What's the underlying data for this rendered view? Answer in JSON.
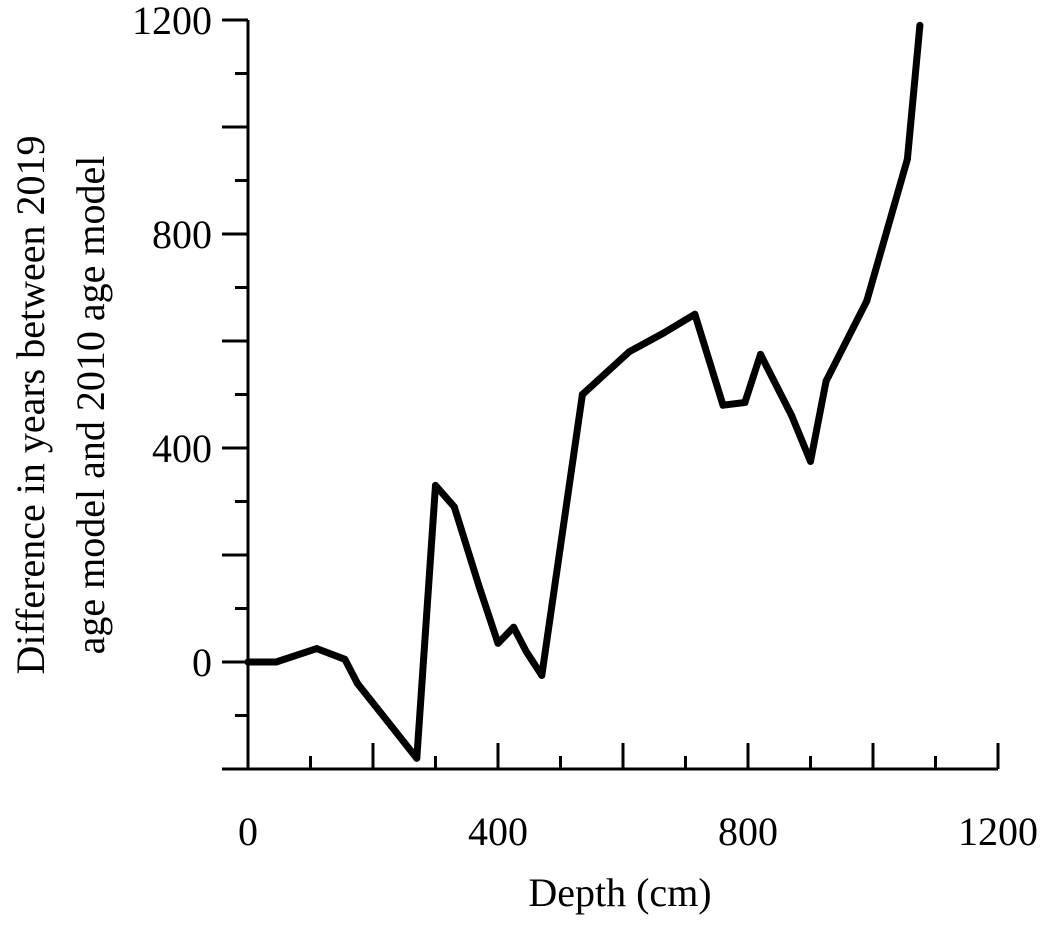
{
  "chart_data": {
    "type": "line",
    "title": "",
    "xlabel": "Depth (cm)",
    "ylabel_lines": [
      "Difference in years between 2019",
      "age model and 2010 age model"
    ],
    "xlim": [
      0,
      1200
    ],
    "ylim": [
      -200,
      1200
    ],
    "x_ticks": [
      0,
      400,
      800,
      1200
    ],
    "y_ticks": [
      0,
      400,
      800,
      1200
    ],
    "x_minor_step": 100,
    "y_minor_step": 100,
    "grid": false,
    "legend": "none",
    "line_color": "#000000",
    "series": [
      {
        "x": [
          0,
          45,
          110,
          155,
          175,
          270,
          300,
          330,
          370,
          400,
          425,
          445,
          470,
          535,
          610,
          665,
          715,
          760,
          795,
          820,
          870,
          900,
          925,
          990,
          1055,
          1075
        ],
        "y": [
          0,
          0,
          25,
          5,
          -40,
          -180,
          330,
          290,
          140,
          35,
          65,
          20,
          -25,
          500,
          580,
          615,
          650,
          480,
          485,
          575,
          460,
          375,
          525,
          675,
          940,
          1190
        ]
      }
    ]
  }
}
